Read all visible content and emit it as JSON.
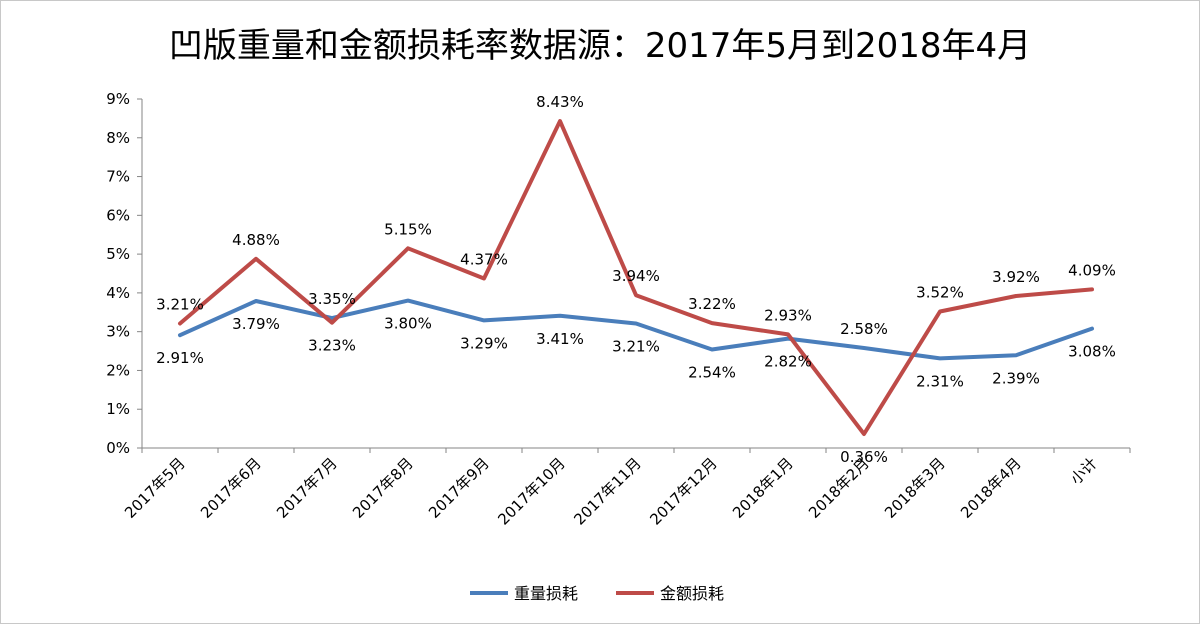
{
  "chart_data": {
    "type": "line",
    "title": "凹版重量和金额损耗率数据源：2017年5月到2018年4月",
    "categories": [
      "2017年5月",
      "2017年6月",
      "2017年7月",
      "2017年8月",
      "2017年9月",
      "2017年10月",
      "2017年11月",
      "2017年12月",
      "2018年1月",
      "2018年2月",
      "2018年3月",
      "2018年4月",
      "小计"
    ],
    "ylim": [
      0,
      9
    ],
    "yticks": [
      "0%",
      "1%",
      "2%",
      "3%",
      "4%",
      "5%",
      "6%",
      "7%",
      "8%",
      "9%"
    ],
    "grid": false,
    "legend_position": "bottom",
    "series": [
      {
        "name": "重量损耗",
        "color": "#4a7ebb",
        "values": [
          2.91,
          3.79,
          3.35,
          3.8,
          3.29,
          3.41,
          3.21,
          2.54,
          2.82,
          2.58,
          2.31,
          2.39,
          3.08
        ],
        "labels": [
          "2.91%",
          "3.79%",
          "3.35%",
          "3.80%",
          "3.29%",
          "3.41%",
          "3.21%",
          "2.54%",
          "2.82%",
          "2.58%",
          "2.31%",
          "2.39%",
          "3.08%"
        ]
      },
      {
        "name": "金额损耗",
        "color": "#be4b48",
        "values": [
          3.21,
          4.88,
          3.23,
          5.15,
          4.37,
          8.43,
          3.94,
          3.22,
          2.93,
          0.36,
          3.52,
          3.92,
          4.09
        ],
        "labels": [
          "3.21%",
          "4.88%",
          "3.23%",
          "5.15%",
          "4.37%",
          "8.43%",
          "3.94%",
          "3.22%",
          "2.93%",
          "0.36%",
          "3.52%",
          "3.92%",
          "4.09%"
        ]
      }
    ]
  }
}
